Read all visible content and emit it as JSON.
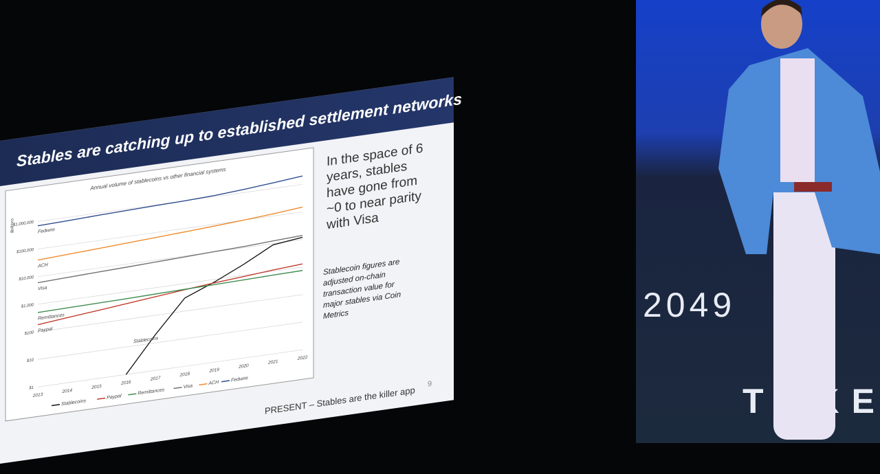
{
  "chart_data": {
    "type": "line",
    "slide_title": "Stables are catching up to established settlement networks",
    "title": "Annual volume of stablecoins vs other financial systems",
    "y_label": "$billions",
    "categories": [
      "2013",
      "2014",
      "2015",
      "2016",
      "2017",
      "2018",
      "2019",
      "2020",
      "2021",
      "2022"
    ],
    "series": [
      {
        "name": "Stablecoins",
        "color": "#111111",
        "values": [
          null,
          null,
          null,
          1,
          20,
          300,
          800,
          2500,
          9000,
          12000
        ]
      },
      {
        "name": "Paypal",
        "color": "#c0392b",
        "values": [
          180,
          230,
          290,
          370,
          470,
          600,
          750,
          900,
          1100,
          1300
        ]
      },
      {
        "name": "Remittances",
        "color": "#3d8b4f",
        "values": [
          500,
          520,
          540,
          560,
          590,
          620,
          650,
          680,
          720,
          750
        ]
      },
      {
        "name": "Visa",
        "color": "#707070",
        "values": [
          6000,
          6600,
          7200,
          7800,
          8500,
          9300,
          10200,
          11000,
          12500,
          14000
        ]
      },
      {
        "name": "ACH",
        "color": "#ee8a2a",
        "values": [
          40000,
          45000,
          51000,
          58000,
          66000,
          75000,
          86000,
          100000,
          120000,
          150000
        ]
      },
      {
        "name": "Fedwire",
        "color": "#2a4a8c",
        "values": [
          700000,
          750000,
          820000,
          880000,
          950000,
          1000000,
          1100000,
          1300000,
          1600000,
          2000000
        ]
      }
    ],
    "log_scale": true,
    "ylim": [
      1,
      3000000
    ],
    "yticks": [
      {
        "value": 1,
        "label": "$1"
      },
      {
        "value": 10,
        "label": "$10"
      },
      {
        "value": 100,
        "label": "$100"
      },
      {
        "value": 1000,
        "label": "$1,000"
      },
      {
        "value": 10000,
        "label": "$10,000"
      },
      {
        "value": 100000,
        "label": "$100,000"
      },
      {
        "value": 1000000,
        "label": "$1,000,000"
      }
    ],
    "grid": true,
    "legend": "bottom",
    "side_text": "In the space of 6 years, stables have gone from ~0 to near parity with Visa",
    "note": "Stablecoin figures are adjusted on-chain transaction value for major stables via Coin Metrics",
    "footer": "PRESENT – Stables are the killer app",
    "page_number": "9"
  },
  "background": {
    "screen_number": "2049",
    "screen_word": "TOKE"
  }
}
